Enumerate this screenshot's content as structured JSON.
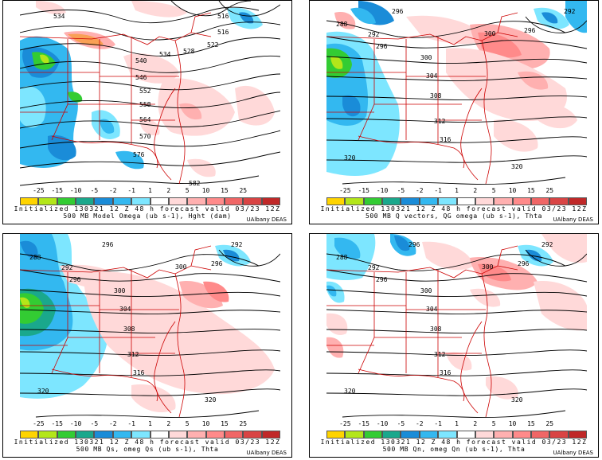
{
  "colorbar": {
    "ticks": [
      "-25",
      "-15",
      "-10",
      "-5",
      "-2",
      "-1",
      "1",
      "2",
      "5",
      "10",
      "15",
      "25"
    ],
    "colors": [
      "#ffd400",
      "#b3e61a",
      "#33cc33",
      "#1aa88c",
      "#1a8cd8",
      "#33b8f0",
      "#7de6ff",
      "#ffffff",
      "#ffd9d9",
      "#ffb0b0",
      "#ff8a8a",
      "#f06666",
      "#d94444",
      "#c02828"
    ]
  },
  "panels": [
    {
      "line1": "Initialized 130321 12 Z  48 h forecast valid 03/23 12Z",
      "line2": "500 MB Model Omega (ub s-1), Hght (dam)",
      "credit": "UAlbany DEAS",
      "contour_labels": [
        "534",
        "516",
        "516",
        "522",
        "534",
        "528",
        "540",
        "546",
        "552",
        "558",
        "564",
        "570",
        "576",
        "582"
      ]
    },
    {
      "line1": "Initialized 130321 12 Z  48 h forecast valid 03/23 12Z",
      "line2": "500 MB Q vectors, QG omega (ub s-1), Thta",
      "credit": "UAlbany DEAS",
      "contour_labels": [
        "288",
        "292",
        "296",
        "296",
        "300",
        "292",
        "296",
        "300",
        "304",
        "308",
        "312",
        "316",
        "320",
        "320"
      ]
    },
    {
      "line1": "Initialized 130321 12 Z  48 h forecast valid 03/23 12Z",
      "line2": "500 MB Qs, omeg Qs (ub s-1), Thta",
      "credit": "UAlbany DEAS",
      "contour_labels": [
        "288",
        "292",
        "296",
        "296",
        "300",
        "292",
        "296",
        "300",
        "304",
        "308",
        "312",
        "316",
        "320",
        "320"
      ]
    },
    {
      "line1": "Initialized 130321 12 Z  48 h forecast valid 03/23 12Z",
      "line2": "500 MB Qn, omeg Qn (ub s-1), Thta",
      "credit": "UAlbany DEAS",
      "contour_labels": [
        "288",
        "292",
        "296",
        "296",
        "300",
        "292",
        "296",
        "300",
        "304",
        "308",
        "312",
        "316",
        "320",
        "320"
      ]
    }
  ]
}
